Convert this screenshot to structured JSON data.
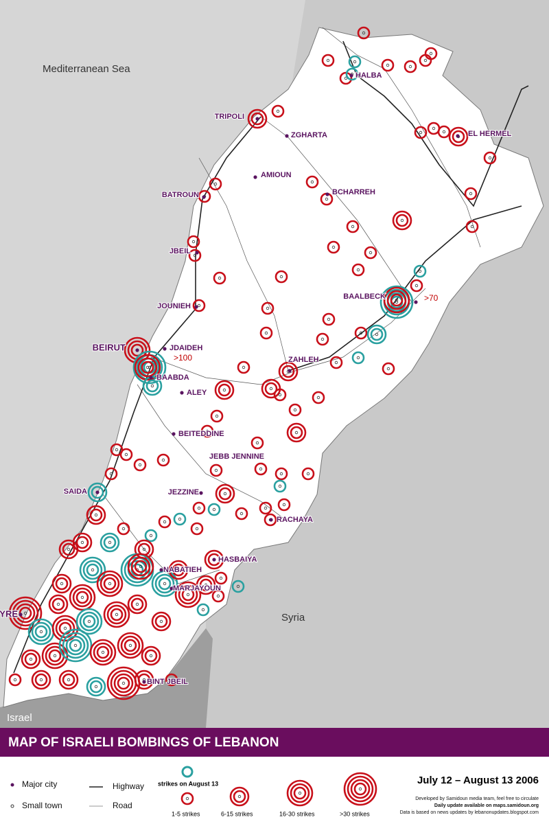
{
  "map": {
    "title": "MAP OF ISRAELI BOMBINGS OF LEBANON",
    "date_range": "July 12 – August 13 2006",
    "regions": [
      "Mediterranean Sea",
      "Syria",
      "Israel"
    ],
    "annotations": [
      ">100",
      ">70"
    ],
    "cities": [
      {
        "name": "HALBA"
      },
      {
        "name": "TRIPOLI"
      },
      {
        "name": "ZGHARTA"
      },
      {
        "name": "EL HERMEL"
      },
      {
        "name": "AMIOUN"
      },
      {
        "name": "BATROUN"
      },
      {
        "name": "BCHARREH"
      },
      {
        "name": "JBEIL"
      },
      {
        "name": "JOUNIEH"
      },
      {
        "name": "BAALBECK"
      },
      {
        "name": "BEIRUT"
      },
      {
        "name": "JDAIDEH"
      },
      {
        "name": "BAABDA"
      },
      {
        "name": "ALEY"
      },
      {
        "name": "ZAHLEH"
      },
      {
        "name": "BEITEDDINE"
      },
      {
        "name": "JEBB JENNINE"
      },
      {
        "name": "SAIDA"
      },
      {
        "name": "JEZZINE"
      },
      {
        "name": "RACHAYA"
      },
      {
        "name": "HASBAIYA"
      },
      {
        "name": "NABATIEH"
      },
      {
        "name": "MARJAYOUN"
      },
      {
        "name": "TYRE"
      },
      {
        "name": "BINT JBEIL"
      }
    ],
    "legend": {
      "major_city": "Major city",
      "small_town": "Small town",
      "highway": "Highway",
      "road": "Road",
      "august13": "strikes on August 13",
      "levels": [
        "1-5 strikes",
        "6-15 strikes",
        "16-30 strikes",
        ">30 strikes"
      ]
    },
    "credits": [
      "Developed by Samidoun media team, feel free to circulate",
      "Daily update available on maps.samidoun.org",
      "Data is based on news updates by lebanonupdates.blogspot.com"
    ]
  }
}
